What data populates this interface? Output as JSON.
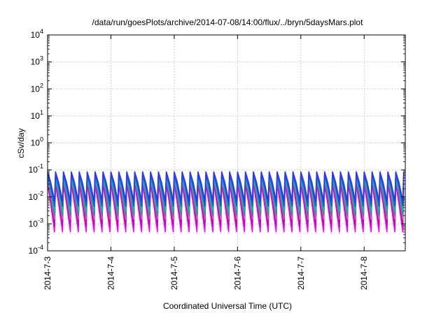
{
  "chart_data": {
    "type": "line",
    "title": "/data/run/goesPlots/archive/2014-07-08/14:00/flux/../bryn/5daysMars.plot",
    "xlabel": "Coordinated Universal Time (UTC)",
    "ylabel": "cSv/day",
    "yscale": "log",
    "ylim": [
      0.0001,
      10000
    ],
    "grid": true,
    "x_ticks": [
      "2014-7-3",
      "2014-7-4",
      "2014-7-5",
      "2014-7-6",
      "2014-7-7",
      "2014-7-8"
    ],
    "y_ticks": [
      {
        "base": "10",
        "exp": "-4"
      },
      {
        "base": "10",
        "exp": "-3"
      },
      {
        "base": "10",
        "exp": "-2"
      },
      {
        "base": "10",
        "exp": "-1"
      },
      {
        "base": "10",
        "exp": "0"
      },
      {
        "base": "10",
        "exp": "1"
      },
      {
        "base": "10",
        "exp": "2"
      },
      {
        "base": "10",
        "exp": "3"
      },
      {
        "base": "10",
        "exp": "4"
      }
    ],
    "xlim_days": [
      0,
      5.65
    ],
    "cycles_per_day": 8,
    "series": [
      {
        "color": "#ff00ff",
        "peak": 0.03,
        "trough": 0.0005
      },
      {
        "color": "#cc00cc",
        "peak": 0.035,
        "trough": 0.0008
      },
      {
        "color": "#a0208a",
        "peak": 0.04,
        "trough": 0.0011
      },
      {
        "color": "#ff44dd",
        "peak": 0.045,
        "trough": 0.0015
      },
      {
        "color": "#20a070",
        "peak": 0.05,
        "trough": 0.002
      },
      {
        "color": "#00c0c0",
        "peak": 0.055,
        "trough": 0.003
      },
      {
        "color": "#1060c0",
        "peak": 0.065,
        "trough": 0.0045
      },
      {
        "color": "#3030ff",
        "peak": 0.085,
        "trough": 0.007
      }
    ]
  }
}
